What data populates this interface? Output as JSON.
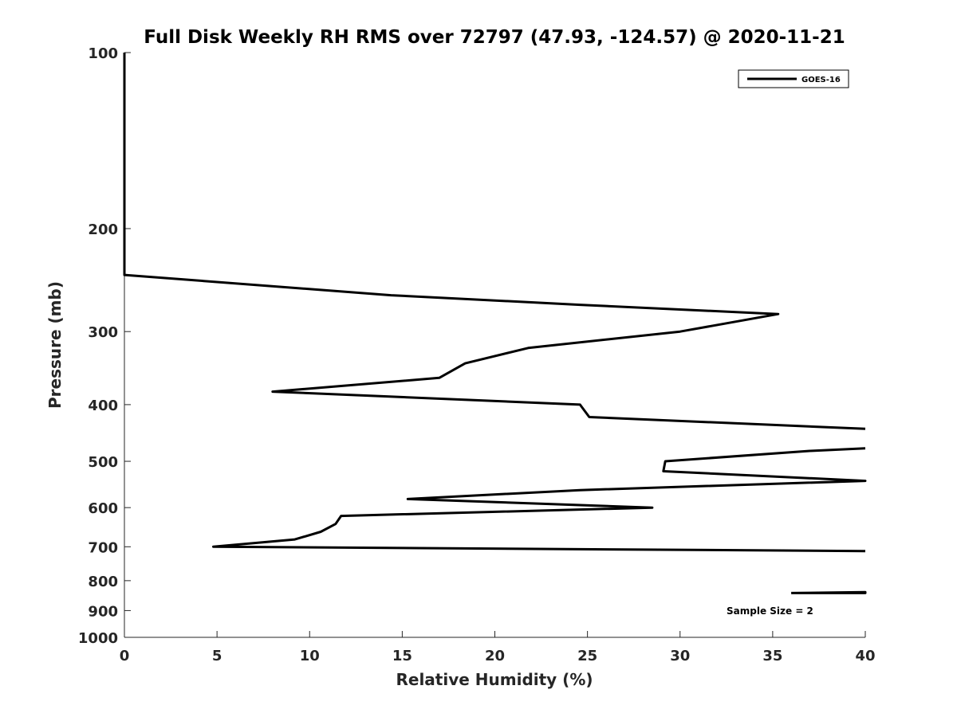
{
  "chart_data": {
    "type": "line",
    "title": "Full Disk Weekly RH RMS over 72797 (47.93, -124.57) @ 2020-11-21",
    "xlabel": "Relative Humidity (%)",
    "ylabel": "Pressure (mb)",
    "xlim": [
      0,
      40
    ],
    "ylim": [
      100,
      1000
    ],
    "y_scale": "log",
    "y_reversed": true,
    "grid": false,
    "legend_position": "top-right",
    "x_ticks": [
      "0",
      "5",
      "10",
      "15",
      "20",
      "25",
      "30",
      "35",
      "40"
    ],
    "y_ticks": [
      "100",
      "200",
      "300",
      "400",
      "500",
      "600",
      "700",
      "800",
      "900",
      "1000"
    ],
    "annotation": "Sample Size = 2",
    "series": [
      {
        "name": "GOES-16",
        "color": "#000000",
        "segments": [
          [
            [
              0,
              100
            ],
            [
              0,
              200
            ],
            [
              0,
              240
            ],
            [
              14.4,
              260
            ],
            [
              24.6,
              270
            ],
            [
              35.3,
              280
            ],
            [
              30,
              300
            ],
            [
              21.8,
              320
            ],
            [
              18.4,
              340
            ],
            [
              17,
              360
            ],
            [
              8,
              380
            ],
            [
              24.6,
              400
            ],
            [
              25.1,
              420
            ],
            [
              40,
              440
            ]
          ],
          [
            [
              40,
              475
            ],
            [
              37,
              480
            ],
            [
              29.2,
              500
            ],
            [
              29.1,
              520
            ],
            [
              40,
              540
            ],
            [
              24.6,
              560
            ],
            [
              15.3,
              580
            ],
            [
              28.5,
              600
            ],
            [
              11.7,
              620
            ],
            [
              11.4,
              640
            ],
            [
              10.6,
              660
            ],
            [
              9.2,
              680
            ],
            [
              4.8,
              700
            ],
            [
              40,
              712
            ]
          ],
          [
            [
              36,
              840
            ],
            [
              40,
              837
            ],
            [
              40,
              840
            ],
            [
              36,
              840
            ]
          ]
        ]
      }
    ]
  }
}
